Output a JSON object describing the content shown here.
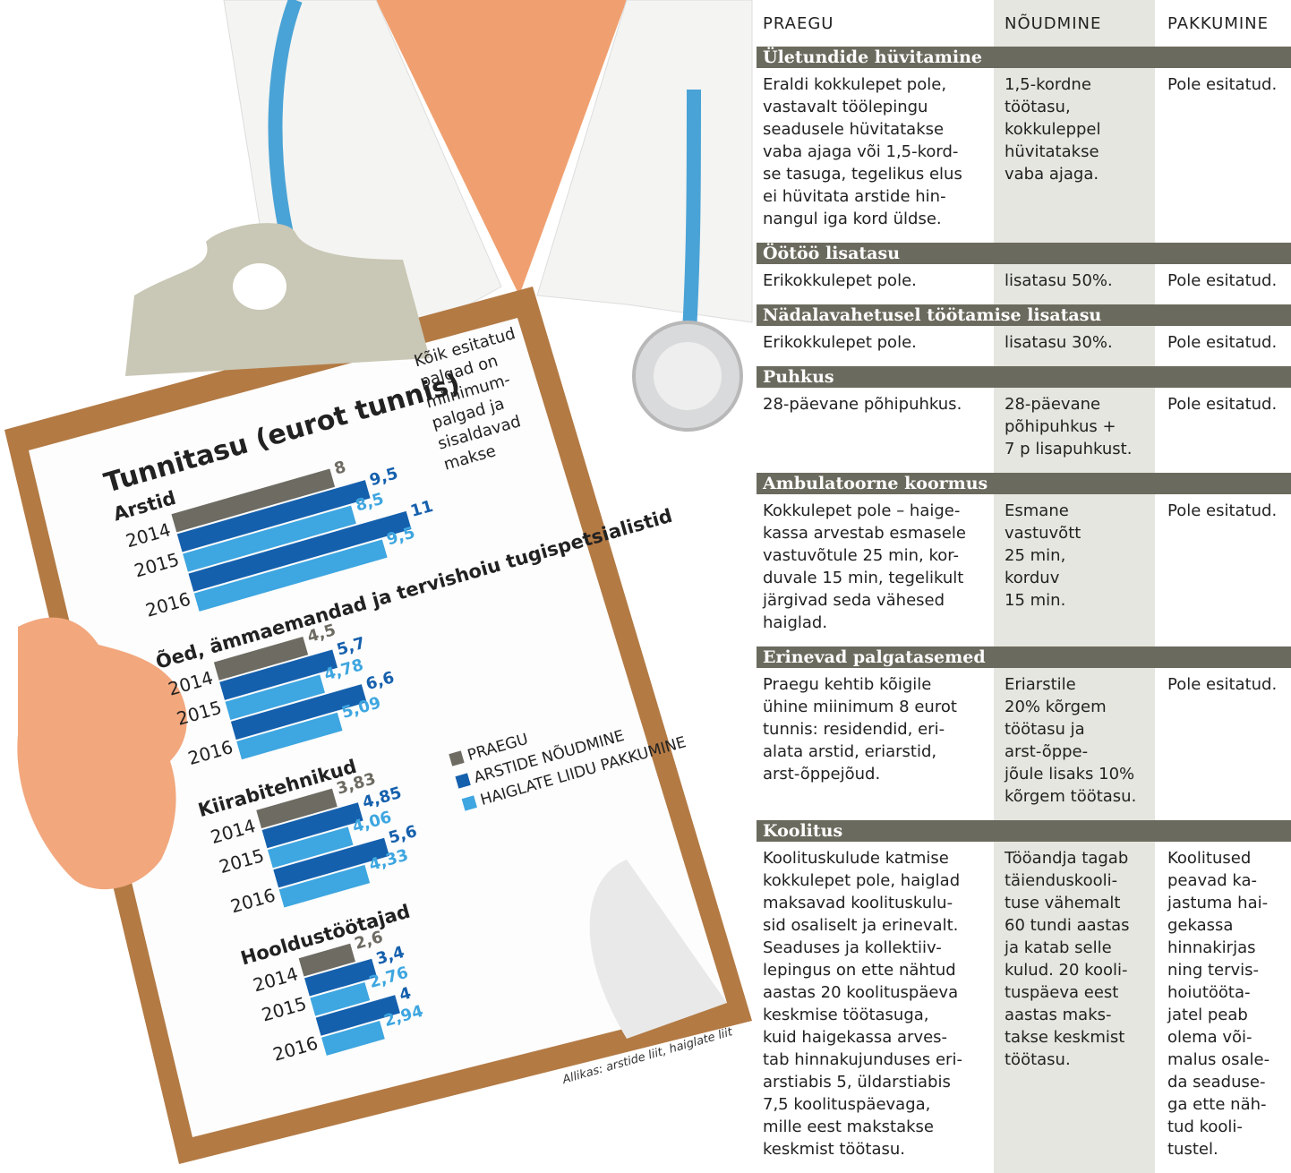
{
  "chart_data": {
    "type": "bar",
    "orientation": "horizontal",
    "title": "Tunnitasu (eurot tunnis)",
    "note": [
      "Kõik esitatud",
      "palgad on",
      "miinimum-",
      "palgad ja",
      "sisaldavad",
      "makse"
    ],
    "source": "Allikas: arstide liit, haiglate liit",
    "groups": [
      "Arstid",
      "Õed, ämmaemandad ja tervishoiu tugispetsialistid",
      "Kiirabitehnikud",
      "Hooldustöötajad"
    ],
    "categories": [
      "2014",
      "2015",
      "2016"
    ],
    "series": [
      {
        "name": "PRAEGU",
        "color": "#6d6b62",
        "values": [
          [
            8,
            null,
            null
          ],
          [
            4.5,
            null,
            null
          ],
          [
            3.83,
            null,
            null
          ],
          [
            2.6,
            null,
            null
          ]
        ],
        "value_labels": [
          [
            "8",
            null,
            null
          ],
          [
            "4,5",
            null,
            null
          ],
          [
            "3,83",
            null,
            null
          ],
          [
            "2,6",
            null,
            null
          ]
        ]
      },
      {
        "name": "ARSTIDE NÕUDMINE",
        "color": "#1560ad",
        "values": [
          [
            null,
            9.5,
            11
          ],
          [
            null,
            5.7,
            6.6
          ],
          [
            null,
            4.85,
            5.6
          ],
          [
            null,
            3.4,
            4
          ]
        ],
        "value_labels": [
          [
            null,
            "9,5",
            "11"
          ],
          [
            null,
            "5,7",
            "6,6"
          ],
          [
            null,
            "4,85",
            "5,6"
          ],
          [
            null,
            "3,4",
            "4"
          ]
        ]
      },
      {
        "name": "HAIGLATE LIIDU PAKKUMINE",
        "color": "#3ea6e0",
        "values": [
          [
            null,
            8.5,
            9.5
          ],
          [
            null,
            4.78,
            5.09
          ],
          [
            null,
            4.06,
            4.33
          ],
          [
            null,
            2.76,
            2.94
          ]
        ],
        "value_labels": [
          [
            null,
            "8,5",
            "9,5"
          ],
          [
            null,
            "4,78",
            "5,09"
          ],
          [
            null,
            "4,06",
            "4,33"
          ],
          [
            null,
            "2,76",
            "2,94"
          ]
        ]
      }
    ]
  },
  "table": {
    "header": [
      "PRAEGU",
      "NÕUDMINE",
      "PAKKUMINE"
    ],
    "sections": [
      {
        "title": "Ületundide hüvitamine",
        "cells": [
          "Eraldi kokkulepet pole,\nvastavalt töölepingu\nseadusele hüvitatakse\nvaba ajaga või 1,5-kord-\nse tasuga, tegelikus elus\nei hüvitata arstide hin-\nnangul iga kord üldse.",
          "1,5-kordne\ntöötasu,\nkokkuleppel\nhüvitatakse\nvaba ajaga.",
          "Pole esitatud."
        ]
      },
      {
        "title": "Öötöö lisatasu",
        "cells": [
          "Erikokkulepet pole.",
          "lisatasu 50%.",
          "Pole esitatud."
        ]
      },
      {
        "title": "Nädalavahetusel töötamise lisatasu",
        "cells": [
          "Erikokkulepet pole.",
          "lisatasu 30%.",
          "Pole esitatud."
        ]
      },
      {
        "title": "Puhkus",
        "cells": [
          "28-päevane põhipuhkus.",
          "28-päevane\npõhipuhkus +\n7 p lisapuhkust.",
          "Pole esitatud."
        ]
      },
      {
        "title": "Ambulatoorne koormus",
        "cells": [
          "Kokkulepet pole – haige-\nkassa arvestab esmasele\nvastuvõtule 25 min, kor-\nduvale 15 min, tegelikult\njärgivad seda vähesed\nhaiglad.",
          "Esmane\nvastuvõtt\n25 min,\nkorduv\n15 min.",
          "Pole esitatud."
        ]
      },
      {
        "title": "Erinevad palgatasemed",
        "cells": [
          "Praegu kehtib kõigile\nühine miinimum 8 eurot\ntunnis: residendid, eri-\nalata arstid, eriarstid,\narst-õppejõud.",
          "Eriarstile\n20% kõrgem\ntöötasu ja\narst-õppe-\njõule lisaks 10%\nkõrgem töötasu.",
          "Pole esitatud."
        ]
      },
      {
        "title": "Koolitus",
        "cells": [
          "Koolituskulude katmise\nkokkulepet pole, haiglad\nmaksavad koolituskulu-\nsid osaliselt ja erinevalt.\nSeaduses ja kollektiiv-\nlepingus on ette nähtud\naastas 20 koolituspäeva\nkeskmise töötasuga,\nkuid haigekassa arves-\ntab hinnakujunduses eri-\narstiabis 5, üldarstiabis\n7,5 koolituspäevaga,\nmille eest makstakse\nkeskmist töötasu.",
          "Tööandja tagab\ntäienduskooli-\ntuse vähemalt\n60 tundi aastas\nja katab selle\nkulud. 20 kooli-\ntuspäeva eest\naastas maks-\ntakse keskmist\ntöötasu.",
          "Koolitused\npeavad ka-\njastuma hai-\ngekassa\nhinnakirjas\nning tervis-\nhoiutööta-\njatel peab\nolema või-\nmalus osale-\nda seaduse-\nga ette näh-\ntud kooli-\ntustel."
        ]
      }
    ]
  }
}
